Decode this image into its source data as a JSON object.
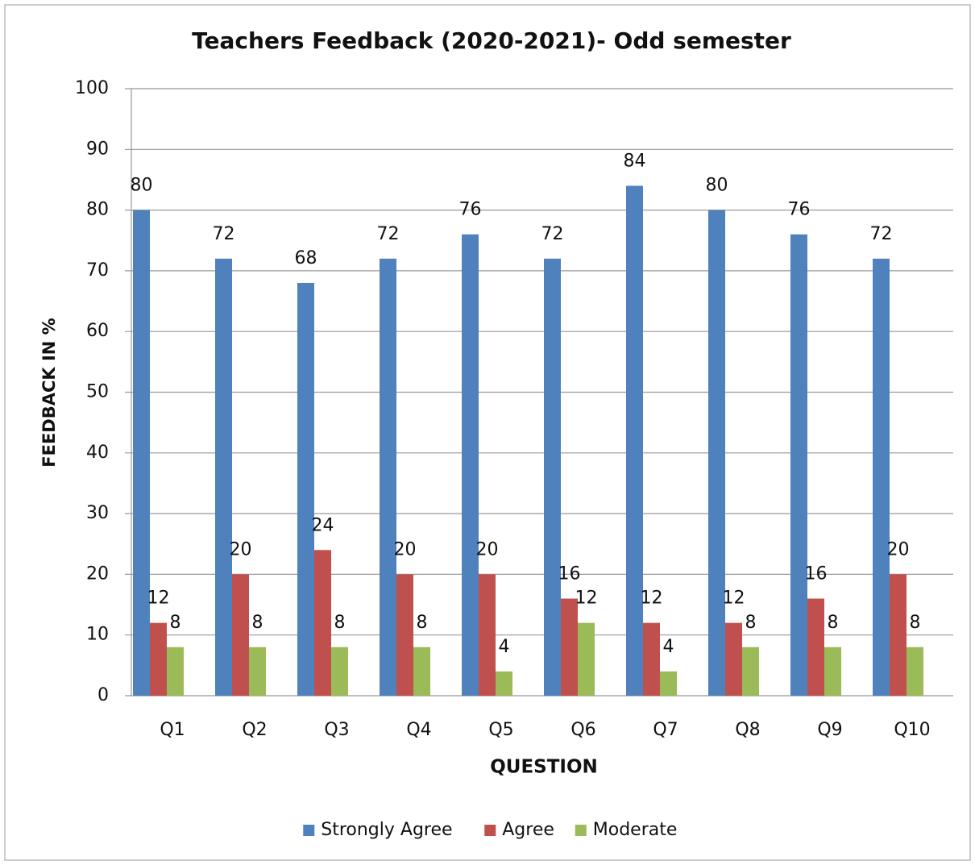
{
  "chart_data": {
    "type": "bar",
    "title": "Teachers Feedback (2020-2021)- Odd semester",
    "x_label": "QUESTION",
    "y_label": "FEEDBACK IN %",
    "categories": [
      "Q1",
      "Q2",
      "Q3",
      "Q4",
      "Q5",
      "Q6",
      "Q7",
      "Q8",
      "Q9",
      "Q10"
    ],
    "series": [
      {
        "name": "Strongly Agree",
        "color": "#4f81bd",
        "values": [
          80,
          72,
          68,
          72,
          76,
          72,
          84,
          80,
          76,
          72
        ]
      },
      {
        "name": "Agree",
        "color": "#c0504d",
        "values": [
          12,
          20,
          24,
          20,
          20,
          16,
          12,
          12,
          16,
          20
        ]
      },
      {
        "name": "Moderate",
        "color": "#9bbb59",
        "values": [
          8,
          8,
          8,
          8,
          4,
          12,
          4,
          8,
          8,
          8
        ]
      }
    ],
    "ylim": [
      0,
      100
    ],
    "yticks": [
      0,
      10,
      20,
      30,
      40,
      50,
      60,
      70,
      80,
      90,
      100
    ],
    "grid": true,
    "legend": "bottom"
  }
}
